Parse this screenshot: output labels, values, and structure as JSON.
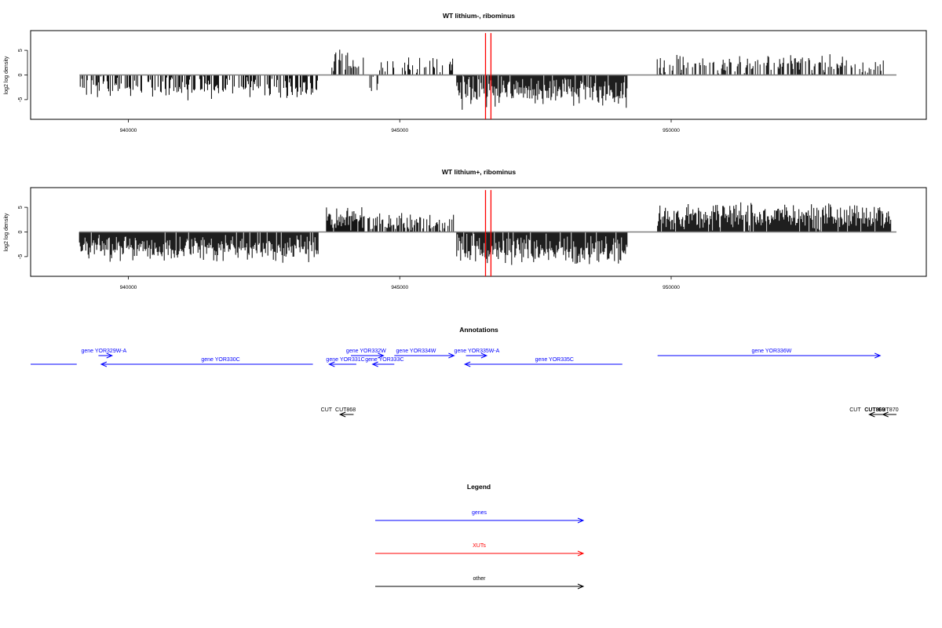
{
  "chart_data": [
    {
      "type": "bar",
      "title": "WT lithium-, ribominus",
      "xlabel": "",
      "ylabel": "log2 log density",
      "xlim": [
        938200,
        954700
      ],
      "ylim": [
        -9,
        9
      ],
      "x_ticks": [
        {
          "value": 940000,
          "label": "940000"
        },
        {
          "value": 945000,
          "label": "945000"
        },
        {
          "value": 950000,
          "label": "950000"
        }
      ],
      "y_ticks": [
        {
          "value": 5,
          "label": "5"
        },
        {
          "value": 0,
          "label": "0"
        },
        {
          "value": -5,
          "label": "-5"
        }
      ],
      "baseline": {
        "x_start": 939100,
        "x_end": 954150,
        "color": "#808080"
      },
      "markers": [
        {
          "x": 946580,
          "y_from": -9,
          "y_to": 8.5,
          "color": "#ff0000"
        },
        {
          "x": 946680,
          "y_from": -9,
          "y_to": 8.5,
          "color": "#ff0000"
        }
      ],
      "segments": [
        {
          "start": 939100,
          "end": 939450,
          "sign": -1,
          "amp": 2.8,
          "var": 1.2,
          "density": 0.45
        },
        {
          "start": 939450,
          "end": 943500,
          "sign": -1,
          "amp": 3.2,
          "var": 1.4,
          "density": 0.55
        },
        {
          "start": 943750,
          "end": 944350,
          "sign": 1,
          "amp": 3.2,
          "var": 1.5,
          "density": 0.55
        },
        {
          "start": 944450,
          "end": 944600,
          "sign": -1,
          "amp": 2.5,
          "var": 0.8,
          "density": 0.25
        },
        {
          "start": 944600,
          "end": 946000,
          "sign": 1,
          "amp": 2.4,
          "var": 1.0,
          "density": 0.3
        },
        {
          "start": 946050,
          "end": 949200,
          "sign": -1,
          "amp": 4.5,
          "var": 1.8,
          "density": 0.9
        },
        {
          "start": 949700,
          "end": 954000,
          "sign": 1,
          "amp": 2.8,
          "var": 1.3,
          "density": 0.45
        }
      ]
    },
    {
      "type": "bar",
      "title": "WT lithium+, ribominus",
      "xlabel": "",
      "ylabel": "log2 log density",
      "xlim": [
        938200,
        954700
      ],
      "ylim": [
        -9,
        9
      ],
      "x_ticks": [
        {
          "value": 940000,
          "label": "940000"
        },
        {
          "value": 945000,
          "label": "945000"
        },
        {
          "value": 950000,
          "label": "950000"
        }
      ],
      "y_ticks": [
        {
          "value": 5,
          "label": "5"
        },
        {
          "value": 0,
          "label": "0"
        },
        {
          "value": -5,
          "label": "-5"
        }
      ],
      "baseline": {
        "x_start": 939100,
        "x_end": 954150,
        "color": "#808080"
      },
      "markers": [
        {
          "x": 946580,
          "y_from": -9,
          "y_to": 8.5,
          "color": "#ff0000"
        },
        {
          "x": 946680,
          "y_from": -9,
          "y_to": 8.5,
          "color": "#ff0000"
        }
      ],
      "segments": [
        {
          "start": 939100,
          "end": 943500,
          "sign": -1,
          "amp": 4.3,
          "var": 1.3,
          "density": 0.95
        },
        {
          "start": 943650,
          "end": 944350,
          "sign": 1,
          "amp": 3.8,
          "var": 1.3,
          "density": 0.9
        },
        {
          "start": 944400,
          "end": 946000,
          "sign": 1,
          "amp": 2.6,
          "var": 1.0,
          "density": 0.65
        },
        {
          "start": 946050,
          "end": 949200,
          "sign": -1,
          "amp": 4.8,
          "var": 1.5,
          "density": 0.95
        },
        {
          "start": 949750,
          "end": 954050,
          "sign": 1,
          "amp": 4.0,
          "var": 1.4,
          "density": 0.95
        }
      ]
    }
  ],
  "annotations": {
    "title": "Annotations",
    "xlim": [
      938200,
      954700
    ],
    "genes": [
      {
        "label": "gene YOR329W-A",
        "x_start": 939450,
        "x_end": 939700,
        "label_x": 939550,
        "row": 0,
        "dir": 1,
        "color": "#0000ff"
      },
      {
        "label": "gene YOR330C",
        "x_start": 939500,
        "x_end": 943400,
        "label_x": 941700,
        "row": 1,
        "dir": -1,
        "color": "#0000ff"
      },
      {
        "label": "gene YOR331C",
        "x_start": 943700,
        "x_end": 944200,
        "label_x": 944000,
        "row": 1,
        "dir": -1,
        "color": "#0000ff"
      },
      {
        "label": "gene YOR332W",
        "x_start": 944100,
        "x_end": 944700,
        "label_x": 944380,
        "row": 0,
        "dir": 1,
        "color": "#0000ff"
      },
      {
        "label": "gene YOR333C",
        "x_start": 944500,
        "x_end": 944900,
        "label_x": 944720,
        "row": 1,
        "dir": -1,
        "color": "#0000ff"
      },
      {
        "label": "gene YOR334W",
        "x_start": 944900,
        "x_end": 946000,
        "label_x": 945300,
        "row": 0,
        "dir": 1,
        "color": "#0000ff"
      },
      {
        "label": "gene YOR335W-A",
        "x_start": 946220,
        "x_end": 946600,
        "label_x": 946420,
        "row": 0,
        "dir": 1,
        "color": "#0000ff"
      },
      {
        "label": "gene YOR335C",
        "x_start": 946200,
        "x_end": 949100,
        "label_x": 947850,
        "row": 1,
        "dir": -1,
        "color": "#0000ff"
      },
      {
        "label": "gene YOR336W",
        "x_start": 949750,
        "x_end": 953850,
        "label_x": 951850,
        "row": 0,
        "dir": 1,
        "color": "#0000ff"
      }
    ],
    "partial_line": {
      "x_start": 938200,
      "x_end": 939050,
      "row": 1,
      "color": "#0000ff"
    },
    "other": [
      {
        "label": "CUT",
        "label_x": 943650,
        "arrows": [
          {
            "x_start": 943900,
            "x_end": 944150,
            "dir": -1
          }
        ],
        "color": "#000000"
      },
      {
        "label": "CUT868",
        "label_x": 944000,
        "arrows": [],
        "color": "#000000"
      },
      {
        "label": "CUT",
        "label_x": 953390,
        "arrows": [
          {
            "x_start": 953650,
            "x_end": 954050,
            "dir": -1
          }
        ],
        "color": "#000000"
      },
      {
        "label": "CUT869",
        "label_x": 953750,
        "arrows": [],
        "color": "#000000",
        "bold": true
      },
      {
        "label": "CUT870",
        "label_x": 954000,
        "arrows": [
          {
            "x_start": 953900,
            "x_end": 954150,
            "dir": -1
          }
        ],
        "color": "#000000"
      }
    ]
  },
  "legend": {
    "title": "Legend",
    "items": [
      {
        "label": "genes",
        "color": "#0000ff"
      },
      {
        "label": "XUTs",
        "color": "#ff0000"
      },
      {
        "label": "other",
        "color": "#000000"
      }
    ]
  }
}
